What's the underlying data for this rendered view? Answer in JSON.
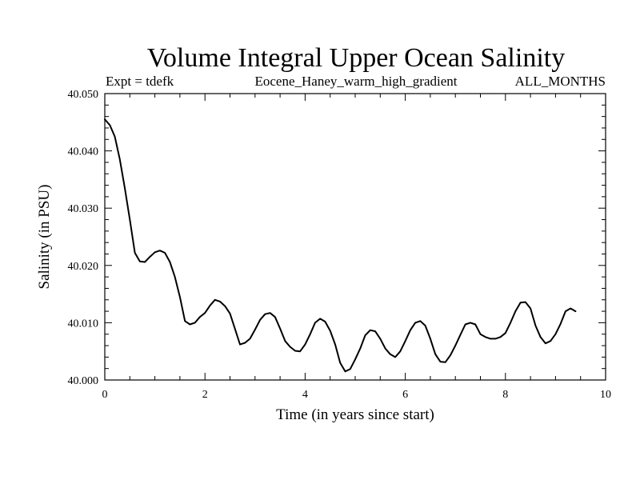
{
  "chart_data": {
    "type": "line",
    "title": "Volume Integral Upper Ocean Salinity",
    "subtitle_left": "Expt = tdefk",
    "subtitle_center": "Eocene_Haney_warm_high_gradient",
    "subtitle_right": "ALL_MONTHS",
    "xlabel": "Time (in years since start)",
    "ylabel": "Salinity (in PSU)",
    "xlim": [
      0,
      10
    ],
    "ylim": [
      40.0,
      40.05
    ],
    "x_ticks": [
      0,
      2,
      4,
      6,
      8,
      10
    ],
    "x_tick_labels": [
      "0",
      "2",
      "4",
      "6",
      "8",
      "10"
    ],
    "x_minor_step": 0.5,
    "y_ticks": [
      40.0,
      40.01,
      40.02,
      40.03,
      40.04,
      40.05
    ],
    "y_tick_labels": [
      "40.000",
      "40.010",
      "40.020",
      "40.030",
      "40.040",
      "40.050"
    ],
    "y_minor_step": 0.002,
    "grid": false,
    "line_color": "#000000",
    "series": [
      {
        "x": [
          0.0,
          0.1,
          0.2,
          0.3,
          0.4,
          0.5,
          0.6,
          0.7,
          0.8,
          0.9,
          1.0,
          1.1,
          1.2,
          1.3,
          1.4,
          1.5,
          1.6,
          1.7,
          1.8,
          1.9,
          2.0,
          2.1,
          2.2,
          2.3,
          2.4,
          2.5,
          2.6,
          2.7,
          2.8,
          2.9,
          3.0,
          3.1,
          3.2,
          3.3,
          3.4,
          3.5,
          3.6,
          3.7,
          3.8,
          3.9,
          4.0,
          4.1,
          4.2,
          4.3,
          4.4,
          4.5,
          4.6,
          4.7,
          4.8,
          4.9,
          5.0,
          5.1,
          5.2,
          5.3,
          5.4,
          5.5,
          5.6,
          5.7,
          5.8,
          5.9,
          6.0,
          6.1,
          6.2,
          6.3,
          6.4,
          6.5,
          6.6,
          6.7,
          6.8,
          6.9,
          7.0,
          7.1,
          7.2,
          7.3,
          7.4,
          7.5,
          7.6,
          7.7,
          7.8,
          7.9,
          8.0,
          8.1,
          8.2,
          8.3,
          8.4,
          8.5,
          8.6,
          8.7,
          8.8,
          8.9,
          9.0,
          9.1,
          9.2,
          9.3,
          9.4
        ],
        "values": [
          40.0455,
          40.0445,
          40.0425,
          40.0385,
          40.0335,
          40.028,
          40.0222,
          40.0207,
          40.0206,
          40.0215,
          40.0223,
          40.0226,
          40.0222,
          40.0206,
          40.018,
          40.0145,
          40.0103,
          40.0097,
          40.01,
          40.011,
          40.0117,
          40.013,
          40.014,
          40.0137,
          40.0129,
          40.0116,
          40.0089,
          40.0062,
          40.0065,
          40.0072,
          40.0088,
          40.0105,
          40.0115,
          40.0117,
          40.011,
          40.009,
          40.0068,
          40.0058,
          40.0051,
          40.005,
          40.0062,
          40.008,
          40.01,
          40.0107,
          40.0102,
          40.0086,
          40.0062,
          40.003,
          40.0015,
          40.0019,
          40.0036,
          40.0055,
          40.0078,
          40.0087,
          40.0085,
          40.0072,
          40.0055,
          40.0045,
          40.004,
          40.005,
          40.0068,
          40.0087,
          40.01,
          40.0103,
          40.0095,
          40.0072,
          40.0045,
          40.0032,
          40.0031,
          40.0043,
          40.006,
          40.0079,
          40.0097,
          40.01,
          40.0097,
          40.008,
          40.0075,
          40.0072,
          40.0072,
          40.0075,
          40.0082,
          40.01,
          40.012,
          40.0135,
          40.0136,
          40.0125,
          40.0095,
          40.0075,
          40.0064,
          40.0068,
          40.008,
          40.0098,
          40.012,
          40.0125,
          40.012
        ]
      }
    ]
  }
}
